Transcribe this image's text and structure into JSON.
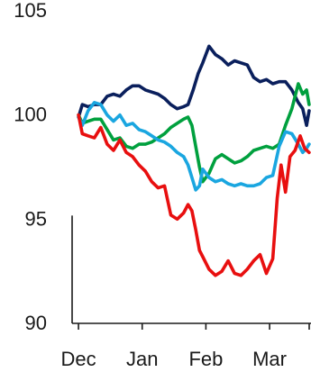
{
  "chart_data": {
    "type": "line",
    "title": "",
    "xlabel": "",
    "ylabel": "",
    "ylim": [
      90,
      105
    ],
    "yticks": [
      90,
      95,
      100,
      105
    ],
    "xticks": [
      {
        "label": "Dec",
        "x": 0
      },
      {
        "label": "Jan",
        "x": 1
      },
      {
        "label": "Feb",
        "x": 2
      },
      {
        "label": "Mar",
        "x": 3
      }
    ],
    "xlim": [
      -0.1,
      3.65
    ],
    "legend": "none",
    "grid": false,
    "series": [
      {
        "color": "#0a1f5c",
        "x": [
          0,
          0.06,
          0.15,
          0.25,
          0.35,
          0.45,
          0.55,
          0.65,
          0.75,
          0.85,
          0.95,
          1.05,
          1.15,
          1.25,
          1.35,
          1.45,
          1.55,
          1.65,
          1.72,
          1.8,
          1.88,
          1.95,
          2.05,
          2.15,
          2.25,
          2.35,
          2.45,
          2.55,
          2.65,
          2.75,
          2.85,
          2.95,
          3.05,
          3.15,
          3.25,
          3.35,
          3.45,
          3.52,
          3.58,
          3.62
        ],
        "values": [
          99.9,
          100.5,
          100.4,
          100.5,
          100.5,
          100.9,
          101.0,
          100.9,
          101.2,
          101.4,
          101.4,
          101.2,
          101.1,
          101.0,
          100.8,
          100.5,
          100.3,
          100.4,
          100.5,
          101.2,
          102.0,
          102.5,
          103.3,
          102.9,
          102.7,
          102.4,
          102.6,
          102.5,
          102.4,
          101.8,
          101.6,
          101.7,
          101.5,
          101.6,
          101.6,
          101.2,
          100.6,
          100.3,
          99.5,
          100.2
        ]
      },
      {
        "color": "#00a03e",
        "x": [
          0,
          0.06,
          0.15,
          0.25,
          0.35,
          0.45,
          0.55,
          0.65,
          0.75,
          0.85,
          0.95,
          1.05,
          1.15,
          1.25,
          1.35,
          1.45,
          1.55,
          1.65,
          1.72,
          1.78,
          1.84,
          1.9,
          1.95,
          2.05,
          2.15,
          2.25,
          2.35,
          2.45,
          2.55,
          2.65,
          2.75,
          2.85,
          2.95,
          3.05,
          3.15,
          3.25,
          3.35,
          3.45,
          3.52,
          3.58,
          3.62
        ],
        "values": [
          100.0,
          99.6,
          99.7,
          99.8,
          99.8,
          99.3,
          98.8,
          98.9,
          98.5,
          98.4,
          98.6,
          98.6,
          98.7,
          98.9,
          99.1,
          99.4,
          99.6,
          99.8,
          99.9,
          99.5,
          98.5,
          97.5,
          96.8,
          97.2,
          97.9,
          98.1,
          97.9,
          97.7,
          97.8,
          98.0,
          98.3,
          98.4,
          98.5,
          98.4,
          98.6,
          99.5,
          100.3,
          101.5,
          101.0,
          101.2,
          100.5
        ]
      },
      {
        "color": "#1aa6e0",
        "x": [
          0,
          0.06,
          0.15,
          0.25,
          0.35,
          0.45,
          0.55,
          0.65,
          0.75,
          0.85,
          0.95,
          1.05,
          1.15,
          1.25,
          1.35,
          1.45,
          1.55,
          1.65,
          1.72,
          1.78,
          1.84,
          1.9,
          1.95,
          2.05,
          2.15,
          2.25,
          2.35,
          2.45,
          2.55,
          2.65,
          2.75,
          2.85,
          2.95,
          3.05,
          3.15,
          3.25,
          3.35,
          3.45,
          3.52,
          3.58,
          3.62
        ],
        "values": [
          99.9,
          99.5,
          100.2,
          100.6,
          100.5,
          100.0,
          99.7,
          100.0,
          99.5,
          99.6,
          99.3,
          99.2,
          99.0,
          98.8,
          98.7,
          98.5,
          98.2,
          98.0,
          97.6,
          97.0,
          96.4,
          96.6,
          97.4,
          97.0,
          96.8,
          96.9,
          96.7,
          96.6,
          96.7,
          96.6,
          96.6,
          96.7,
          97.0,
          97.1,
          98.5,
          99.2,
          99.1,
          98.6,
          98.2,
          98.4,
          98.6
        ]
      },
      {
        "color": "#e80f0f",
        "x": [
          0,
          0.06,
          0.15,
          0.25,
          0.35,
          0.45,
          0.55,
          0.65,
          0.75,
          0.85,
          0.95,
          1.05,
          1.15,
          1.25,
          1.35,
          1.45,
          1.55,
          1.65,
          1.72,
          1.78,
          1.84,
          1.9,
          1.95,
          2.05,
          2.15,
          2.25,
          2.35,
          2.45,
          2.55,
          2.65,
          2.75,
          2.85,
          2.95,
          3.05,
          3.12,
          3.18,
          3.25,
          3.32,
          3.4,
          3.48,
          3.55,
          3.62
        ],
        "values": [
          100.0,
          99.1,
          99.0,
          98.9,
          99.4,
          98.6,
          98.3,
          98.8,
          98.2,
          98.0,
          97.6,
          97.3,
          96.8,
          96.5,
          96.6,
          95.2,
          95.0,
          95.3,
          95.7,
          95.4,
          94.5,
          93.5,
          93.2,
          92.6,
          92.3,
          92.5,
          93.0,
          92.4,
          92.3,
          92.6,
          93.0,
          93.3,
          92.4,
          93.1,
          96.0,
          97.6,
          96.3,
          98.0,
          98.3,
          99.0,
          98.4,
          98.2
        ]
      }
    ]
  }
}
